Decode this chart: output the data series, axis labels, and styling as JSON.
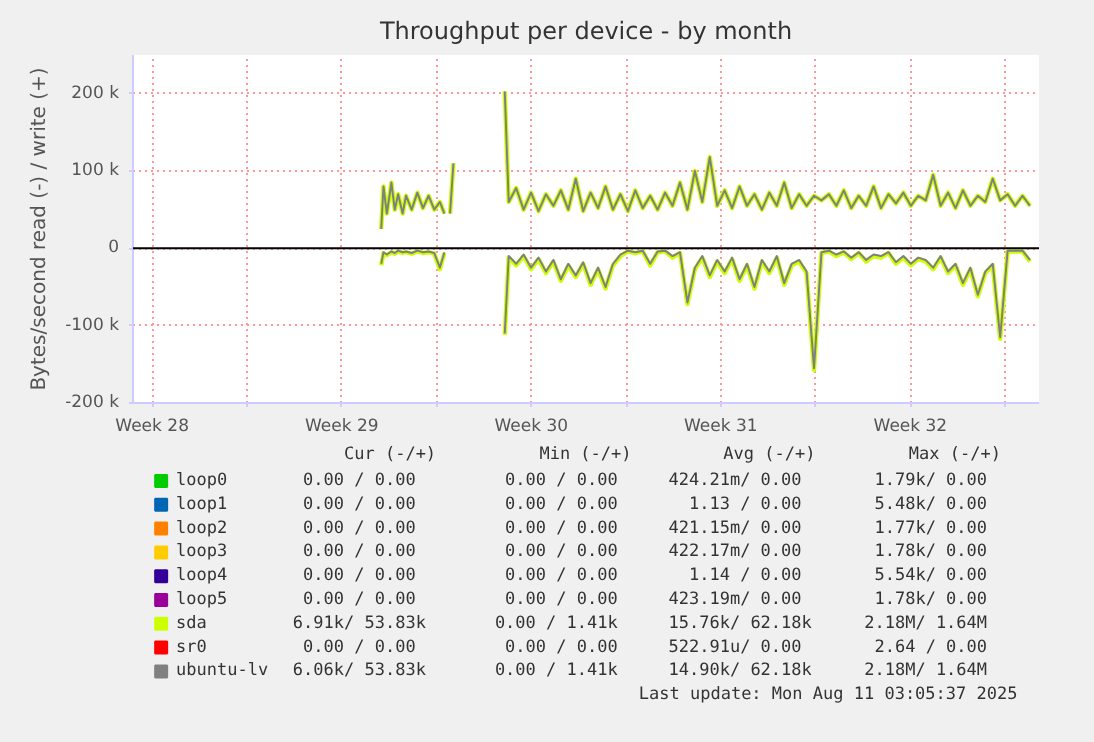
{
  "chart_data": {
    "type": "line",
    "title": "Throughput per device - by month",
    "ylabel": "Bytes/second read (-) / write (+)",
    "xlim": [
      "2025-07-09T19:00",
      "2025-08-12T06:00"
    ],
    "ylim": [
      -200000,
      250000
    ],
    "xticks": [
      {
        "value": "2025-07-10T12:00",
        "label": "Week 28"
      },
      {
        "value": "2025-07-14",
        "label": null
      },
      {
        "value": "2025-07-17T12:00",
        "label": "Week 29"
      },
      {
        "value": "2025-07-21",
        "label": null
      },
      {
        "value": "2025-07-24T12:00",
        "label": "Week 30"
      },
      {
        "value": "2025-07-28",
        "label": null
      },
      {
        "value": "2025-07-31T12:00",
        "label": "Week 31"
      },
      {
        "value": "2025-08-04",
        "label": null
      },
      {
        "value": "2025-08-07T12:00",
        "label": "Week 32"
      },
      {
        "value": "2025-08-11",
        "label": null
      }
    ],
    "yticks": [
      {
        "value": -200000,
        "label": "-200 k"
      },
      {
        "value": -100000,
        "label": "-100 k"
      },
      0,
      {
        "value": 100000,
        "label": "100 k"
      },
      {
        "value": 200000,
        "label": "200 k"
      }
    ],
    "grid": true,
    "legend": "bottom",
    "marker": "none",
    "line_style": "solid",
    "ref_lines": [
      {
        "axis": "y",
        "value": 0,
        "color": "#000000"
      }
    ],
    "x": [
      "2025-07-18T23:00",
      "2025-07-19T01:00",
      "2025-07-19T04:00",
      "2025-07-19T08:00",
      "2025-07-19T11:00",
      "2025-07-19T14:00",
      "2025-07-19T18:00",
      "2025-07-19T21:00",
      "2025-07-20T02:00",
      "2025-07-20T07:00",
      "2025-07-20T12:00",
      "2025-07-20T17:00",
      "2025-07-20T22:00",
      "2025-07-21T03:00",
      "2025-07-21T07:00",
      "2025-07-21T09:00",
      "2025-07-21T12:00",
      "2025-07-21T15:00",
      "2025-07-22T10:00",
      "2025-07-23T12:30",
      "2025-07-23T16:00",
      "2025-07-23T22:36",
      "2025-07-24T05:12",
      "2025-07-24T11:48",
      "2025-07-24T18:24",
      "2025-07-25T01:00",
      "2025-07-25T07:36",
      "2025-07-25T14:12",
      "2025-07-25T20:48",
      "2025-07-26T03:24",
      "2025-07-26T10:00",
      "2025-07-26T16:36",
      "2025-07-26T23:12",
      "2025-07-27T05:48",
      "2025-07-27T12:24",
      "2025-07-27T19:00",
      "2025-07-28T01:36",
      "2025-07-28T08:12",
      "2025-07-28T14:48",
      "2025-07-28T21:24",
      "2025-07-29T04:00",
      "2025-07-29T10:36",
      "2025-07-29T17:12",
      "2025-07-29T23:48",
      "2025-07-30T06:24",
      "2025-07-30T13:00",
      "2025-07-30T19:36",
      "2025-07-31T02:12",
      "2025-07-31T08:48",
      "2025-07-31T15:24",
      "2025-07-31T22:00",
      "2025-08-01T04:36",
      "2025-08-01T11:12",
      "2025-08-01T17:48",
      "2025-08-02T00:24",
      "2025-08-02T07:00",
      "2025-08-02T13:36",
      "2025-08-02T20:12",
      "2025-08-03T02:48",
      "2025-08-03T09:24",
      "2025-08-03T16:00",
      "2025-08-03T22:36",
      "2025-08-04T05:12",
      "2025-08-04T11:48",
      "2025-08-04T18:24",
      "2025-08-05T01:00",
      "2025-08-05T07:36",
      "2025-08-05T14:12",
      "2025-08-05T20:48",
      "2025-08-06T03:24",
      "2025-08-06T10:00",
      "2025-08-06T16:36",
      "2025-08-06T23:12",
      "2025-08-07T05:48",
      "2025-08-07T12:24",
      "2025-08-07T19:00",
      "2025-08-08T01:36",
      "2025-08-08T08:12",
      "2025-08-08T14:48",
      "2025-08-08T21:24",
      "2025-08-09T04:00",
      "2025-08-09T10:36",
      "2025-08-09T17:12",
      "2025-08-09T23:48",
      "2025-08-10T06:24",
      "2025-08-10T13:00",
      "2025-08-10T19:36",
      "2025-08-11T02:12",
      "2025-08-11T08:48",
      "2025-08-11T15:24",
      "2025-08-11T22:00"
    ],
    "series": [
      {
        "name": "loop0",
        "color": "#00cc00",
        "values": [
          null,
          null,
          null,
          null,
          null,
          null,
          null,
          null,
          null,
          null,
          null,
          null,
          null,
          null,
          null,
          null,
          null,
          null,
          null,
          null,
          null,
          null,
          null,
          null,
          null,
          null,
          null,
          null,
          null,
          null,
          null,
          null,
          null,
          null,
          null,
          null,
          null,
          null,
          null,
          null,
          null,
          null,
          null,
          null,
          null,
          null,
          null,
          null,
          null,
          null,
          null,
          null,
          null,
          null,
          null,
          null,
          null,
          null,
          null,
          null,
          null,
          null,
          null,
          null,
          null,
          null,
          null,
          null,
          null,
          null,
          null,
          null,
          null,
          null,
          null,
          null,
          null,
          null,
          null,
          null,
          null,
          null,
          null,
          null,
          null,
          null,
          null,
          null,
          null,
          null,
          null
        ]
      },
      {
        "name": "loop1",
        "color": "#0066b3",
        "values": [
          null,
          null,
          null,
          null,
          null,
          null,
          null,
          null,
          null,
          null,
          null,
          null,
          null,
          null,
          null,
          null,
          null,
          null,
          null,
          null,
          null,
          null,
          null,
          null,
          null,
          null,
          null,
          null,
          null,
          null,
          null,
          null,
          null,
          null,
          null,
          null,
          null,
          null,
          null,
          null,
          null,
          null,
          null,
          null,
          null,
          null,
          null,
          null,
          null,
          null,
          null,
          null,
          null,
          null,
          null,
          null,
          null,
          null,
          null,
          null,
          null,
          null,
          null,
          null,
          null,
          null,
          null,
          null,
          null,
          null,
          null,
          null,
          null,
          null,
          null,
          null,
          null,
          null,
          null,
          null,
          null,
          null,
          null,
          null,
          null,
          null,
          null,
          null,
          null,
          null,
          null
        ]
      },
      {
        "name": "loop2",
        "color": "#ff8000",
        "values": [
          null,
          null,
          null,
          null,
          null,
          null,
          null,
          null,
          null,
          null,
          null,
          null,
          null,
          null,
          null,
          null,
          null,
          null,
          null,
          null,
          null,
          null,
          null,
          null,
          null,
          null,
          null,
          null,
          null,
          null,
          null,
          null,
          null,
          null,
          null,
          null,
          null,
          null,
          null,
          null,
          null,
          null,
          null,
          null,
          null,
          null,
          null,
          null,
          null,
          null,
          null,
          null,
          null,
          null,
          null,
          null,
          null,
          null,
          null,
          null,
          null,
          null,
          null,
          null,
          null,
          null,
          null,
          null,
          null,
          null,
          null,
          null,
          null,
          null,
          null,
          null,
          null,
          null,
          null,
          null,
          null,
          null,
          null,
          null,
          null,
          null,
          null,
          null,
          null,
          null,
          null
        ]
      },
      {
        "name": "loop3",
        "color": "#ffcc00",
        "values": [
          null,
          null,
          null,
          null,
          null,
          null,
          null,
          null,
          null,
          null,
          null,
          null,
          null,
          null,
          null,
          null,
          null,
          null,
          null,
          null,
          null,
          null,
          null,
          null,
          null,
          null,
          null,
          null,
          null,
          null,
          null,
          null,
          null,
          null,
          null,
          null,
          null,
          null,
          null,
          null,
          null,
          null,
          null,
          null,
          null,
          null,
          null,
          null,
          null,
          null,
          null,
          null,
          null,
          null,
          null,
          null,
          null,
          null,
          null,
          null,
          null,
          null,
          null,
          null,
          null,
          null,
          null,
          null,
          null,
          null,
          null,
          null,
          null,
          null,
          null,
          null,
          null,
          null,
          null,
          null,
          null,
          null,
          null,
          null,
          null,
          null,
          null,
          null,
          null,
          null,
          null
        ]
      },
      {
        "name": "loop4",
        "color": "#330099",
        "values": [
          null,
          null,
          null,
          null,
          null,
          null,
          null,
          null,
          null,
          null,
          null,
          null,
          null,
          null,
          null,
          null,
          null,
          null,
          null,
          null,
          null,
          null,
          null,
          null,
          null,
          null,
          null,
          null,
          null,
          null,
          null,
          null,
          null,
          null,
          null,
          null,
          null,
          null,
          null,
          null,
          null,
          null,
          null,
          null,
          null,
          null,
          null,
          null,
          null,
          null,
          null,
          null,
          null,
          null,
          null,
          null,
          null,
          null,
          null,
          null,
          null,
          null,
          null,
          null,
          null,
          null,
          null,
          null,
          null,
          null,
          null,
          null,
          null,
          null,
          null,
          null,
          null,
          null,
          null,
          null,
          null,
          null,
          null,
          null,
          null,
          null,
          null,
          null,
          null,
          null,
          null
        ]
      },
      {
        "name": "loop5",
        "color": "#990099",
        "values": [
          null,
          null,
          null,
          null,
          null,
          null,
          null,
          null,
          null,
          null,
          null,
          null,
          null,
          null,
          null,
          null,
          null,
          null,
          null,
          null,
          null,
          null,
          null,
          null,
          null,
          null,
          null,
          null,
          null,
          null,
          null,
          null,
          null,
          null,
          null,
          null,
          null,
          null,
          null,
          null,
          null,
          null,
          null,
          null,
          null,
          null,
          null,
          null,
          null,
          null,
          null,
          null,
          null,
          null,
          null,
          null,
          null,
          null,
          null,
          null,
          null,
          null,
          null,
          null,
          null,
          null,
          null,
          null,
          null,
          null,
          null,
          null,
          null,
          null,
          null,
          null,
          null,
          null,
          null,
          null,
          null,
          null,
          null,
          null,
          null,
          null,
          null,
          null,
          null,
          null,
          null
        ]
      },
      {
        "name": "sda",
        "color": "#ccff00",
        "values": [
          25000,
          80000,
          45000,
          85000,
          50000,
          70000,
          45000,
          68000,
          50000,
          72000,
          52000,
          68000,
          50000,
          60000,
          45000,
          null,
          45000,
          110000,
          null,
          203000,
          60000,
          78000,
          50000,
          72000,
          48000,
          70000,
          55000,
          75000,
          50000,
          90000,
          48000,
          72000,
          52000,
          80000,
          50000,
          70000,
          48000,
          75000,
          52000,
          68000,
          50000,
          72000,
          55000,
          85000,
          50000,
          100000,
          60000,
          118000,
          55000,
          75000,
          52000,
          80000,
          55000,
          70000,
          50000,
          72000,
          55000,
          85000,
          52000,
          70000,
          55000,
          68000,
          62000,
          70000,
          55000,
          75000,
          52000,
          68000,
          55000,
          80000,
          52000,
          70000,
          58000,
          72000,
          55000,
          68000,
          62000,
          95000,
          55000,
          72000,
          52000,
          75000,
          55000,
          68000,
          60000,
          90000,
          62000,
          70000,
          55000,
          68000,
          55000
        ]
      },
      {
        "color": "#ccff00",
        "values": [
          -22000,
          -6000,
          -9000,
          -5000,
          -7000,
          -4000,
          -6000,
          -5000,
          -7000,
          -4000,
          -6000,
          -5000,
          -7000,
          -27000,
          -6000,
          null,
          null,
          null,
          null,
          -112000,
          -12000,
          -22000,
          -10000,
          -27000,
          -14000,
          -32000,
          -17000,
          -42000,
          -22000,
          -37000,
          -20000,
          -47000,
          -27000,
          -52000,
          -22000,
          -10000,
          -4000,
          -6000,
          -4000,
          -22000,
          -5000,
          -4000,
          -12000,
          -6000,
          -72000,
          -27000,
          -12000,
          -37000,
          -17000,
          -32000,
          -14000,
          -42000,
          -22000,
          -52000,
          -17000,
          -32000,
          -12000,
          -47000,
          -22000,
          -17000,
          -32000,
          -157000,
          -6000,
          -4000,
          -10000,
          -5000,
          -14000,
          -6000,
          -17000,
          -10000,
          -12000,
          -6000,
          -20000,
          -12000,
          -22000,
          -14000,
          -17000,
          -27000,
          -12000,
          -32000,
          -22000,
          -47000,
          -27000,
          -62000,
          -32000,
          -22000,
          -117000,
          -4000,
          -4000,
          -4000,
          -17000
        ]
      },
      {
        "name": "sr0",
        "color": "#ff0000",
        "values": [
          null,
          null,
          null,
          null,
          null,
          null,
          null,
          null,
          null,
          null,
          null,
          null,
          null,
          null,
          null,
          null,
          null,
          null,
          null,
          null,
          null,
          null,
          null,
          null,
          null,
          null,
          null,
          null,
          null,
          null,
          null,
          null,
          null,
          null,
          null,
          null,
          null,
          null,
          null,
          null,
          null,
          null,
          null,
          null,
          null,
          null,
          null,
          null,
          null,
          null,
          null,
          null,
          null,
          null,
          null,
          null,
          null,
          null,
          null,
          null,
          null,
          null,
          null,
          null,
          null,
          null,
          null,
          null,
          null,
          null,
          null,
          null,
          null,
          null,
          null,
          null,
          null,
          null,
          null,
          null,
          null,
          null,
          null,
          null,
          null,
          null,
          null,
          null,
          null,
          null,
          null
        ]
      },
      {
        "name": "ubuntu-lv",
        "color": "#808080",
        "values": [
          25000,
          80000,
          45000,
          85000,
          50000,
          70000,
          45000,
          68000,
          50000,
          72000,
          52000,
          68000,
          50000,
          60000,
          45000,
          null,
          45000,
          110000,
          null,
          203000,
          60000,
          78000,
          50000,
          72000,
          48000,
          70000,
          55000,
          75000,
          50000,
          90000,
          48000,
          72000,
          52000,
          80000,
          50000,
          70000,
          48000,
          75000,
          52000,
          68000,
          50000,
          72000,
          55000,
          85000,
          50000,
          100000,
          60000,
          118000,
          55000,
          75000,
          52000,
          80000,
          55000,
          70000,
          50000,
          72000,
          55000,
          85000,
          52000,
          70000,
          55000,
          68000,
          62000,
          70000,
          55000,
          75000,
          52000,
          68000,
          55000,
          80000,
          52000,
          70000,
          58000,
          72000,
          55000,
          68000,
          62000,
          95000,
          55000,
          72000,
          52000,
          75000,
          55000,
          68000,
          60000,
          90000,
          62000,
          70000,
          55000,
          68000,
          55000
        ]
      },
      {
        "color": "#808080",
        "values": [
          -20000,
          -5000,
          -8000,
          -4000,
          -6000,
          -3000,
          -5000,
          -4000,
          -6000,
          -3000,
          -5000,
          -4000,
          -6000,
          -25000,
          -5000,
          null,
          null,
          null,
          null,
          -110000,
          -10000,
          -20000,
          -8000,
          -25000,
          -12000,
          -30000,
          -15000,
          -40000,
          -20000,
          -35000,
          -18000,
          -45000,
          -25000,
          -50000,
          -20000,
          -8000,
          -3000,
          -5000,
          -3000,
          -20000,
          -4000,
          -3000,
          -10000,
          -5000,
          -70000,
          -25000,
          -10000,
          -35000,
          -15000,
          -30000,
          -12000,
          -40000,
          -20000,
          -50000,
          -15000,
          -30000,
          -10000,
          -45000,
          -20000,
          -15000,
          -30000,
          -155000,
          -5000,
          -3000,
          -8000,
          -4000,
          -12000,
          -5000,
          -15000,
          -8000,
          -10000,
          -5000,
          -18000,
          -10000,
          -20000,
          -12000,
          -15000,
          -25000,
          -10000,
          -30000,
          -20000,
          -45000,
          -25000,
          -60000,
          -30000,
          -20000,
          -115000,
          -3000,
          -3000,
          -3000,
          -15000
        ]
      }
    ],
    "annotations": [
      "Cur (-/+)",
      "Min (-/+)",
      "Avg (-/+)",
      "Max (-/+)",
      "0.00 /   0.00",
      "0.00 /   0.00",
      "424.21m/   0.00",
      "1.79k/   0.00",
      "0.00 /   0.00",
      "0.00 /   0.00",
      "1.13 /   0.00",
      "5.48k/   0.00",
      "0.00 /   0.00",
      "0.00 /   0.00",
      "421.15m/   0.00",
      "1.77k/   0.00",
      "0.00 /   0.00",
      "0.00 /   0.00",
      "422.17m/   0.00",
      "1.78k/   0.00",
      "0.00 /   0.00",
      "0.00 /   0.00",
      "1.14 /   0.00",
      "5.54k/   0.00",
      "0.00 /   0.00",
      "0.00 /   0.00",
      "423.19m/   0.00",
      "1.78k/   0.00",
      "6.91k/  53.83k",
      "0.00 /   1.41k",
      "15.76k/  62.18k",
      "2.18M/   1.64M",
      "0.00 /   0.00",
      "0.00 /   0.00",
      "522.91u/   0.00",
      "2.64 /   0.00",
      "6.06k/  53.83k",
      "0.00 /   1.41k",
      "14.90k/  62.18k",
      "2.18M/   1.64M",
      "Last update: Mon Aug 11 03:05:37 2025"
    ]
  }
}
